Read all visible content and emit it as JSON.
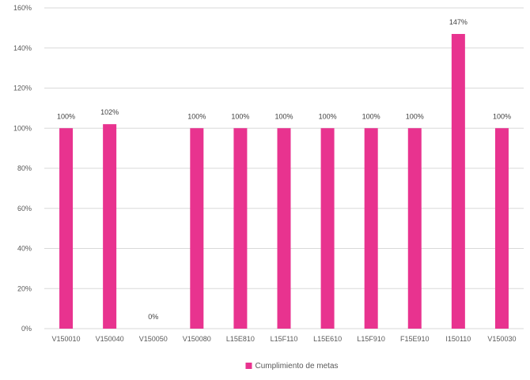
{
  "chart_data": {
    "type": "bar",
    "categories": [
      "V150010",
      "V150040",
      "V150050",
      "V150080",
      "L15E810",
      "L15F110",
      "L15E610",
      "L15F910",
      "F15E910",
      "I150110",
      "V150030"
    ],
    "series": [
      {
        "name": "Cumplimiento de metas",
        "values": [
          100,
          102,
          0,
          100,
          100,
          100,
          100,
          100,
          100,
          147,
          100
        ],
        "labels": [
          "100%",
          "102%",
          "0%",
          "100%",
          "100%",
          "100%",
          "100%",
          "100%",
          "100%",
          "147%",
          "100%"
        ],
        "color": "#e8338f"
      }
    ],
    "ylim": [
      0,
      160
    ],
    "yticks": [
      "0%",
      "20%",
      "40%",
      "60%",
      "80%",
      "100%",
      "120%",
      "140%",
      "160%"
    ],
    "grid": true,
    "legend_position": "bottom"
  }
}
